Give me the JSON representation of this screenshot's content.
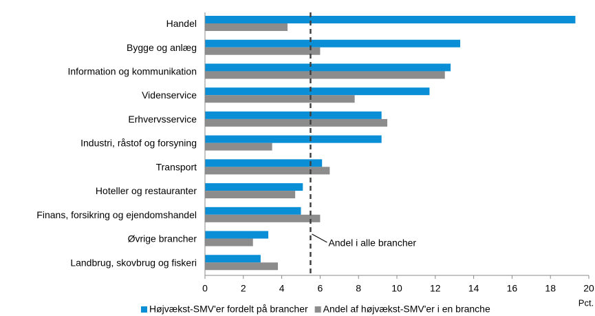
{
  "chart_data": {
    "type": "hbar",
    "categories": [
      "Handel",
      "Bygge og anlæg",
      "Information og kommunikation",
      "Videnservice",
      "Erhvervsservice",
      "Industri, råstof og forsyning",
      "Transport",
      "Hoteller og restauranter",
      "Finans, forsikring og ejendomshandel",
      "Øvrige brancher",
      "Landbrug, skovbrug og fiskeri"
    ],
    "series": [
      {
        "name": "Højvækst-SMV'er fordelt på brancher",
        "color": "#0a8fd6",
        "values": [
          19.3,
          13.3,
          12.8,
          11.7,
          9.2,
          9.2,
          6.1,
          5.1,
          5.0,
          3.3,
          2.9
        ]
      },
      {
        "name": "Andel af højvækst-SMV'er i en branche",
        "color": "#8c8c8c",
        "values": [
          4.3,
          6.0,
          12.5,
          7.8,
          9.5,
          3.5,
          6.5,
          4.7,
          6.0,
          2.5,
          3.8
        ]
      }
    ],
    "xlim": [
      0,
      20
    ],
    "xticks": [
      0,
      2,
      4,
      6,
      8,
      10,
      12,
      14,
      16,
      18,
      20
    ],
    "x_unit": "Pct.",
    "reference_line": {
      "value": 5.5,
      "label": "Andel i alle brancher"
    },
    "grid": false,
    "legend": "bottom"
  }
}
